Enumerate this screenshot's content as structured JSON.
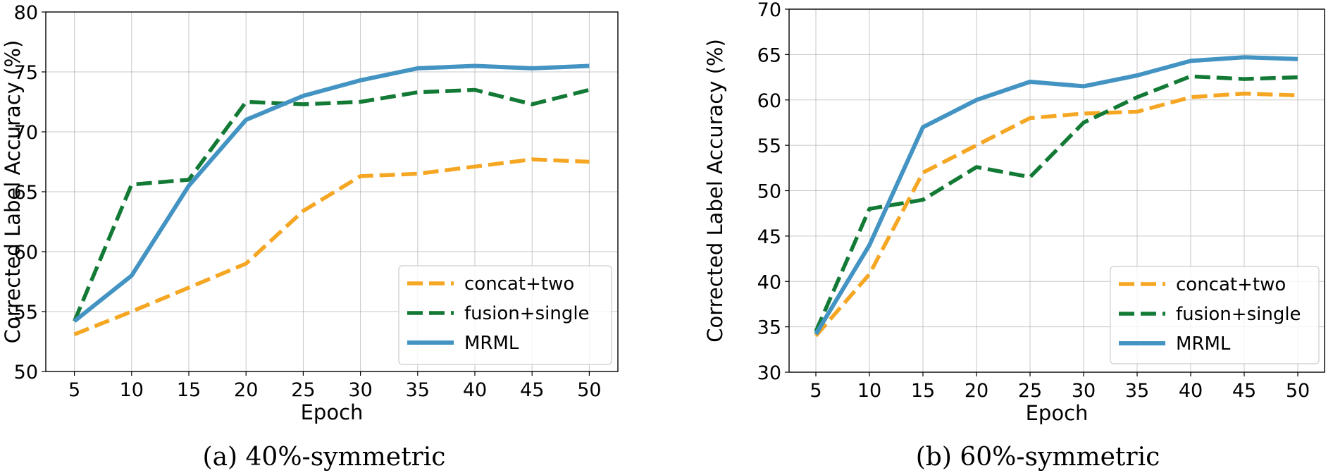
{
  "chart_data": [
    {
      "type": "line",
      "caption": "(a) 40%-symmetric",
      "xlabel": "Epoch",
      "ylabel": "Corrected Label Accuracy (%)",
      "x": [
        5,
        10,
        15,
        20,
        25,
        30,
        35,
        40,
        45,
        50
      ],
      "xticks": [
        "5",
        "10",
        "15",
        "20",
        "25",
        "30",
        "35",
        "40",
        "45",
        "50"
      ],
      "ylim": [
        50,
        80
      ],
      "yticks": [
        "50",
        "55",
        "60",
        "65",
        "70",
        "75",
        "80"
      ],
      "grid": true,
      "legend_position": "lower-right",
      "series": [
        {
          "name": "concat+two",
          "color": "#f5a623",
          "style": "dashed",
          "values": [
            53.1,
            55.0,
            57.0,
            59.0,
            63.4,
            66.3,
            66.5,
            67.1,
            67.7,
            67.5
          ]
        },
        {
          "name": "fusion+single",
          "color": "#137a36",
          "style": "dashed",
          "values": [
            54.2,
            65.6,
            66.0,
            72.5,
            72.3,
            72.5,
            73.3,
            73.5,
            72.3,
            73.5
          ]
        },
        {
          "name": "MRML",
          "color": "#4393c3",
          "style": "solid",
          "values": [
            54.2,
            58.0,
            65.5,
            71.0,
            73.0,
            74.3,
            75.3,
            75.5,
            75.3,
            75.5
          ]
        }
      ]
    },
    {
      "type": "line",
      "caption": "(b) 60%-symmetric",
      "xlabel": "Epoch",
      "ylabel": "Corrected Label Accuracy (%)",
      "x": [
        5,
        10,
        15,
        20,
        25,
        30,
        35,
        40,
        45,
        50
      ],
      "xticks": [
        "5",
        "10",
        "15",
        "20",
        "25",
        "30",
        "35",
        "40",
        "45",
        "50"
      ],
      "ylim": [
        30,
        70
      ],
      "yticks": [
        "30",
        "35",
        "40",
        "45",
        "50",
        "55",
        "60",
        "65",
        "70"
      ],
      "grid": true,
      "legend_position": "lower-right",
      "series": [
        {
          "name": "concat+two",
          "color": "#f5a623",
          "style": "dashed",
          "values": [
            34.0,
            40.8,
            52.0,
            55.0,
            58.0,
            58.5,
            58.7,
            60.3,
            60.7,
            60.5
          ]
        },
        {
          "name": "fusion+single",
          "color": "#137a36",
          "style": "dashed",
          "values": [
            34.5,
            48.0,
            49.0,
            52.6,
            51.5,
            57.5,
            60.3,
            62.6,
            62.3,
            62.5
          ]
        },
        {
          "name": "MRML",
          "color": "#4393c3",
          "style": "solid",
          "values": [
            34.2,
            44.0,
            57.0,
            60.0,
            62.0,
            61.5,
            62.7,
            64.3,
            64.7,
            64.5
          ]
        }
      ]
    }
  ]
}
